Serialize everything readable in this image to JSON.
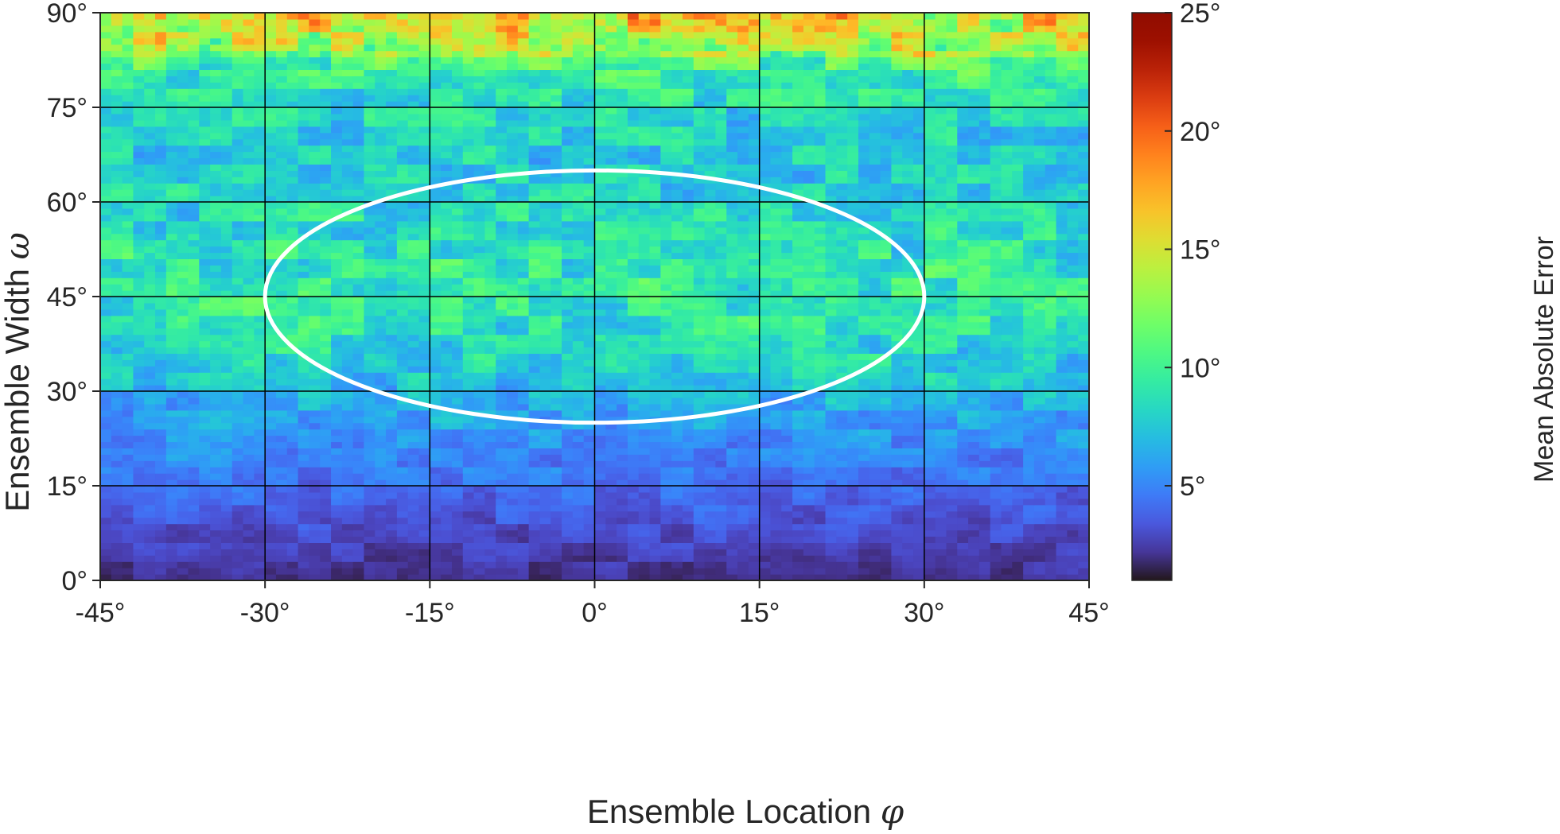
{
  "chart_data": {
    "type": "heatmap",
    "title": "",
    "xlabel": "Ensemble Location",
    "xlabel_symbol": "φ",
    "ylabel": "Ensemble Width",
    "ylabel_symbol": "ω",
    "xlim": [
      -45,
      45
    ],
    "ylim": [
      0,
      90
    ],
    "x_ticks": [
      -45,
      -30,
      -15,
      0,
      15,
      30,
      45
    ],
    "y_ticks": [
      0,
      15,
      30,
      45,
      60,
      75,
      90
    ],
    "x_tick_labels": [
      "-45°",
      "-30°",
      "-15°",
      "0°",
      "15°",
      "30°",
      "45°"
    ],
    "y_tick_labels": [
      "0°",
      "15°",
      "30°",
      "45°",
      "60°",
      "75°",
      "90°"
    ],
    "grid": true,
    "grid_color": "#000000",
    "colormap": "turbo",
    "colorbar": {
      "label": "Mean Absolute Error",
      "range": [
        1,
        25
      ],
      "ticks": [
        5,
        10,
        15,
        20,
        25
      ],
      "tick_labels": [
        "5°",
        "10°",
        "15°",
        "20°",
        "25°"
      ],
      "placement": "right"
    },
    "grid_resolution_deg": 1,
    "mean_error_by_width": [
      {
        "width": 0,
        "value": 2.0
      },
      {
        "width": 5,
        "value": 2.6
      },
      {
        "width": 10,
        "value": 3.4
      },
      {
        "width": 15,
        "value": 4.2
      },
      {
        "width": 20,
        "value": 5.0
      },
      {
        "width": 25,
        "value": 5.9
      },
      {
        "width": 30,
        "value": 6.9
      },
      {
        "width": 35,
        "value": 8.0
      },
      {
        "width": 40,
        "value": 8.8
      },
      {
        "width": 45,
        "value": 9.3
      },
      {
        "width": 50,
        "value": 9.1
      },
      {
        "width": 55,
        "value": 8.6
      },
      {
        "width": 60,
        "value": 8.1
      },
      {
        "width": 65,
        "value": 7.7
      },
      {
        "width": 70,
        "value": 7.8
      },
      {
        "width": 75,
        "value": 8.3
      },
      {
        "width": 80,
        "value": 9.6
      },
      {
        "width": 85,
        "value": 12.0
      },
      {
        "width": 90,
        "value": 14.5
      }
    ],
    "annotations": [
      {
        "type": "ellipse",
        "center": [
          0,
          45
        ],
        "radius_x": 30,
        "radius_y": 20,
        "color": "#ffffff"
      }
    ]
  }
}
